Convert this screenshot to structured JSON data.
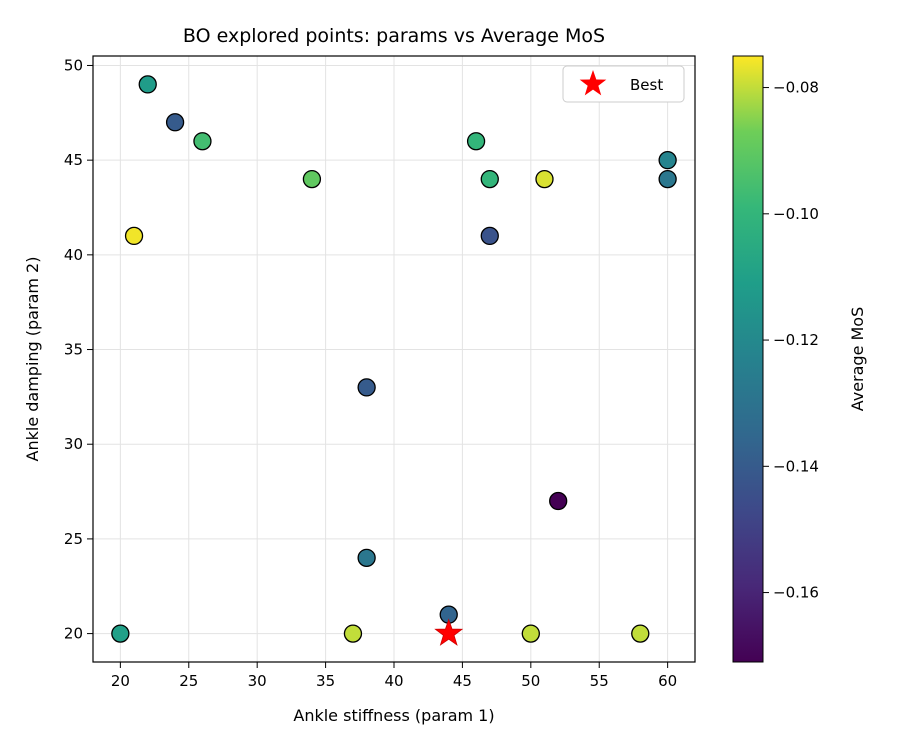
{
  "chart_data": {
    "type": "scatter",
    "title": "BO explored points: params vs Average MoS",
    "xlabel": "Ankle stiffness (param 1)",
    "ylabel": "Ankle damping (param 2)",
    "xlim": [
      18,
      62
    ],
    "ylim": [
      18.5,
      50.5
    ],
    "xticks": [
      20,
      25,
      30,
      35,
      40,
      45,
      50,
      55,
      60
    ],
    "yticks": [
      20,
      25,
      30,
      35,
      40,
      45,
      50
    ],
    "grid": true,
    "colormap": "viridis",
    "colorbar": {
      "label": "Average MoS",
      "range": [
        -0.171,
        -0.075
      ],
      "ticks": [
        -0.08,
        -0.1,
        -0.12,
        -0.14,
        -0.16
      ],
      "tick_labels": [
        "−0.08",
        "−0.10",
        "−0.12",
        "−0.14",
        "−0.16"
      ]
    },
    "points": [
      {
        "x": 22,
        "y": 49,
        "mos": -0.112
      },
      {
        "x": 24,
        "y": 47,
        "mos": -0.14
      },
      {
        "x": 26,
        "y": 46,
        "mos": -0.096
      },
      {
        "x": 21,
        "y": 41,
        "mos": -0.076
      },
      {
        "x": 34,
        "y": 44,
        "mos": -0.09
      },
      {
        "x": 46,
        "y": 46,
        "mos": -0.1
      },
      {
        "x": 47,
        "y": 44,
        "mos": -0.1
      },
      {
        "x": 51,
        "y": 44,
        "mos": -0.078
      },
      {
        "x": 47,
        "y": 41,
        "mos": -0.143
      },
      {
        "x": 60,
        "y": 45,
        "mos": -0.122
      },
      {
        "x": 60,
        "y": 44,
        "mos": -0.128
      },
      {
        "x": 38,
        "y": 33,
        "mos": -0.14
      },
      {
        "x": 52,
        "y": 27,
        "mos": -0.171
      },
      {
        "x": 38,
        "y": 24,
        "mos": -0.128
      },
      {
        "x": 44,
        "y": 21,
        "mos": -0.136
      },
      {
        "x": 20,
        "y": 20,
        "mos": -0.11
      },
      {
        "x": 37,
        "y": 20,
        "mos": -0.08
      },
      {
        "x": 50,
        "y": 20,
        "mos": -0.08
      },
      {
        "x": 58,
        "y": 20,
        "mos": -0.08
      }
    ],
    "best": {
      "x": 44,
      "y": 20,
      "label": "Best",
      "color": "#ff0000"
    },
    "legend": {
      "entries": [
        "Best"
      ],
      "placement": "top-right"
    }
  }
}
